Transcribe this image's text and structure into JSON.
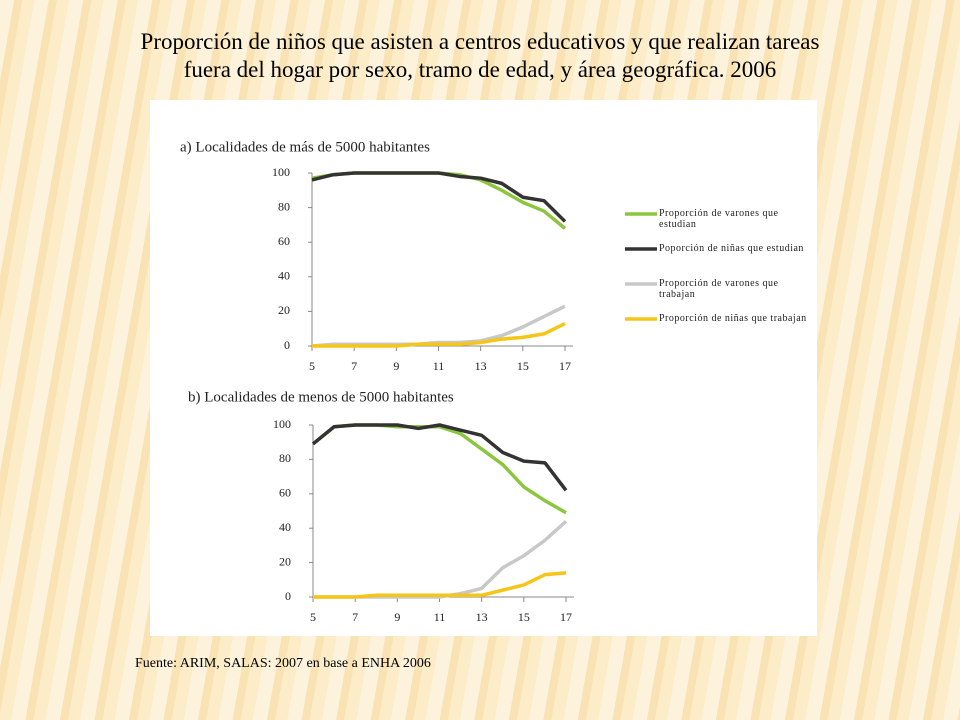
{
  "slide": {
    "title": "Proporción de niños que asisten a centros educativos y que realizan tareas fuera del hogar por sexo, tramo de edad, y área geográfica. 2006",
    "source": "Fuente: ARIM, SALAS: 2007 en base a ENHA 2006"
  },
  "chart_data": [
    {
      "type": "line",
      "title": "a) Localidades de más de 5000 habitantes",
      "x": [
        5,
        6,
        7,
        8,
        9,
        10,
        11,
        12,
        13,
        14,
        15,
        16,
        17
      ],
      "xlim": [
        5,
        17
      ],
      "xticks": [
        5,
        7,
        9,
        11,
        13,
        15,
        17
      ],
      "ylim": [
        0,
        100
      ],
      "yticks": [
        0,
        20,
        40,
        60,
        80,
        100
      ],
      "legend": "right",
      "series": [
        {
          "name": "Proporción de varones que estudian",
          "color": "#8cc63e",
          "values": [
            97,
            99,
            100,
            100,
            100,
            100,
            100,
            99,
            96,
            90,
            83,
            78,
            68
          ]
        },
        {
          "name": "Poporción de niñas que estudian",
          "color": "#333333",
          "values": [
            96,
            99,
            100,
            100,
            100,
            100,
            100,
            98,
            97,
            94,
            86,
            84,
            72
          ]
        },
        {
          "name": "Proporción de varones que trabajan",
          "color": "#c8c8c8",
          "values": [
            0,
            1,
            1,
            1,
            1,
            1,
            2,
            2,
            3,
            6,
            11,
            17,
            23
          ]
        },
        {
          "name": "Proporción de niñas que trabajan",
          "color": "#f5c518",
          "values": [
            0,
            0,
            0,
            0,
            0,
            1,
            1,
            1,
            2,
            4,
            5,
            7,
            13
          ]
        }
      ]
    },
    {
      "type": "line",
      "title": "b) Localidades de menos de 5000 habitantes",
      "x": [
        5,
        6,
        7,
        8,
        9,
        10,
        11,
        12,
        13,
        14,
        15,
        16,
        17
      ],
      "xlim": [
        5,
        17
      ],
      "xticks": [
        5,
        7,
        9,
        11,
        13,
        15,
        17
      ],
      "ylim": [
        0,
        100
      ],
      "yticks": [
        0,
        20,
        40,
        60,
        80,
        100
      ],
      "series": [
        {
          "color": "#8cc63e",
          "values": [
            89,
            99,
            100,
            100,
            99,
            99,
            99,
            95,
            86,
            77,
            64,
            56,
            49
          ]
        },
        {
          "color": "#333333",
          "values": [
            89,
            99,
            100,
            100,
            100,
            98,
            100,
            97,
            94,
            84,
            79,
            78,
            62
          ]
        },
        {
          "color": "#c8c8c8",
          "values": [
            0,
            0,
            0,
            0,
            0,
            0,
            0,
            2,
            5,
            17,
            24,
            33,
            44
          ]
        },
        {
          "color": "#f5c518",
          "values": [
            0,
            0,
            0,
            1,
            1,
            1,
            1,
            1,
            1,
            4,
            7,
            13,
            14
          ]
        }
      ]
    }
  ]
}
